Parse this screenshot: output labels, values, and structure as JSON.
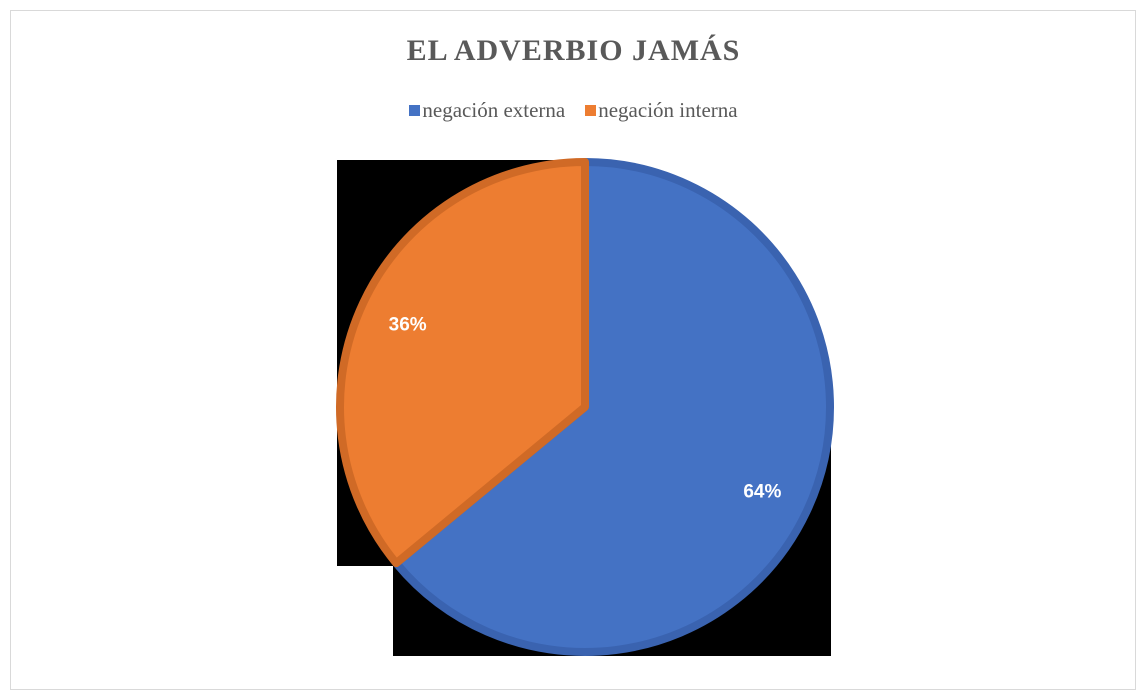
{
  "chart_data": {
    "type": "pie",
    "title": "EL ADVERBIO JAMÁS",
    "legend_position": "top",
    "slices": [
      {
        "name": "negación externa",
        "value": 64,
        "label": "64%",
        "color": "#4472C4",
        "edge_color": "#3A63B0"
      },
      {
        "name": "negación interna",
        "value": 36,
        "label": "36%",
        "color": "#ED7D31",
        "edge_color": "#D06A26"
      }
    ],
    "background_artifact_color": "#000000"
  }
}
